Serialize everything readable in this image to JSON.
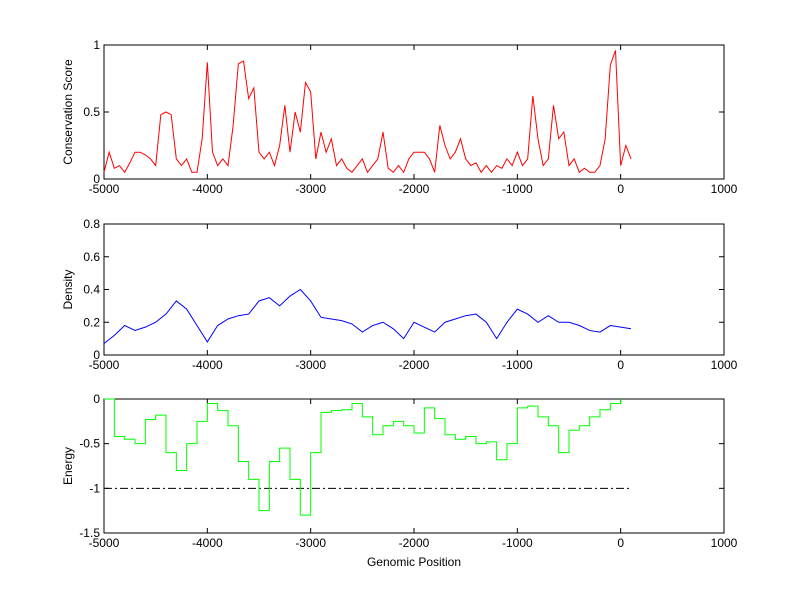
{
  "chart_data": [
    {
      "type": "line",
      "ylabel": "Conservation Score",
      "xlabel": "",
      "xlim": [
        -5000,
        1000
      ],
      "ylim": [
        0,
        1
      ],
      "xticks": [
        "-5000",
        "-4000",
        "-3000",
        "-2000",
        "-1000",
        "0",
        "1000"
      ],
      "yticks": [
        "0",
        "0.5",
        "1"
      ],
      "ytick_values": [
        0,
        0.5,
        1
      ],
      "color": "#ff0000",
      "x_start": -5000,
      "x_step": 50,
      "values": [
        0.05,
        0.2,
        0.08,
        0.1,
        0.05,
        0.12,
        0.2,
        0.2,
        0.18,
        0.15,
        0.1,
        0.48,
        0.5,
        0.48,
        0.15,
        0.1,
        0.15,
        0.05,
        0.05,
        0.3,
        0.87,
        0.2,
        0.1,
        0.15,
        0.1,
        0.4,
        0.86,
        0.88,
        0.6,
        0.68,
        0.2,
        0.15,
        0.2,
        0.1,
        0.25,
        0.55,
        0.2,
        0.5,
        0.35,
        0.72,
        0.65,
        0.15,
        0.35,
        0.2,
        0.3,
        0.1,
        0.15,
        0.08,
        0.05,
        0.1,
        0.15,
        0.05,
        0.1,
        0.15,
        0.35,
        0.08,
        0.05,
        0.1,
        0.05,
        0.15,
        0.2,
        0.2,
        0.2,
        0.15,
        0.05,
        0.4,
        0.25,
        0.15,
        0.2,
        0.3,
        0.15,
        0.1,
        0.12,
        0.05,
        0.1,
        0.05,
        0.1,
        0.08,
        0.15,
        0.1,
        0.2,
        0.1,
        0.15,
        0.62,
        0.3,
        0.1,
        0.15,
        0.55,
        0.3,
        0.35,
        0.1,
        0.15,
        0.05,
        0.08,
        0.05,
        0.05,
        0.1,
        0.3,
        0.85,
        0.96,
        0.1,
        0.25,
        0.15
      ]
    },
    {
      "type": "line",
      "ylabel": "Density",
      "xlabel": "",
      "xlim": [
        -5000,
        1000
      ],
      "ylim": [
        0,
        0.8
      ],
      "xticks": [
        "-5000",
        "-4000",
        "-3000",
        "-2000",
        "-1000",
        "0",
        "1000"
      ],
      "yticks": [
        "0",
        "0.2",
        "0.4",
        "0.6",
        "0.8"
      ],
      "ytick_values": [
        0,
        0.2,
        0.4,
        0.6,
        0.8
      ],
      "color": "#0000ff",
      "x_start": -5000,
      "x_step": 100,
      "values": [
        0.07,
        0.12,
        0.18,
        0.15,
        0.17,
        0.2,
        0.25,
        0.33,
        0.28,
        0.18,
        0.08,
        0.18,
        0.22,
        0.24,
        0.25,
        0.33,
        0.35,
        0.3,
        0.36,
        0.4,
        0.33,
        0.23,
        0.22,
        0.21,
        0.19,
        0.14,
        0.18,
        0.2,
        0.16,
        0.1,
        0.2,
        0.17,
        0.14,
        0.2,
        0.22,
        0.24,
        0.25,
        0.2,
        0.1,
        0.2,
        0.28,
        0.25,
        0.2,
        0.24,
        0.2,
        0.2,
        0.18,
        0.15,
        0.14,
        0.18,
        0.17,
        0.16
      ]
    },
    {
      "type": "line",
      "ylabel": "Energy",
      "xlabel": "Genomic Position",
      "xlim": [
        -5000,
        1000
      ],
      "ylim": [
        -1.5,
        0
      ],
      "xticks": [
        "-5000",
        "-4000",
        "-3000",
        "-2000",
        "-1000",
        "0",
        "1000"
      ],
      "yticks": [
        "-1.5",
        "-1",
        "-0.5",
        "0"
      ],
      "ytick_values": [
        -1.5,
        -1,
        -0.5,
        0
      ],
      "color": "#00ff00",
      "x_start": -5000,
      "x_step": 100,
      "values": [
        0,
        -0.42,
        -0.45,
        -0.5,
        -0.23,
        -0.18,
        -0.6,
        -0.8,
        -0.5,
        -0.25,
        -0.05,
        -0.13,
        -0.3,
        -0.7,
        -0.9,
        -1.25,
        -0.7,
        -0.55,
        -0.9,
        -1.3,
        -0.6,
        -0.15,
        -0.13,
        -0.12,
        -0.05,
        -0.2,
        -0.4,
        -0.3,
        -0.25,
        -0.3,
        -0.38,
        -0.1,
        -0.22,
        -0.4,
        -0.45,
        -0.42,
        -0.5,
        -0.48,
        -0.68,
        -0.5,
        -0.1,
        -0.08,
        -0.2,
        -0.3,
        -0.6,
        -0.35,
        -0.3,
        -0.2,
        -0.12,
        -0.05,
        0
      ],
      "threshold": {
        "value": -1,
        "x_range": [
          -5000,
          100
        ],
        "color": "#000000",
        "style": "dash-dot"
      }
    }
  ]
}
